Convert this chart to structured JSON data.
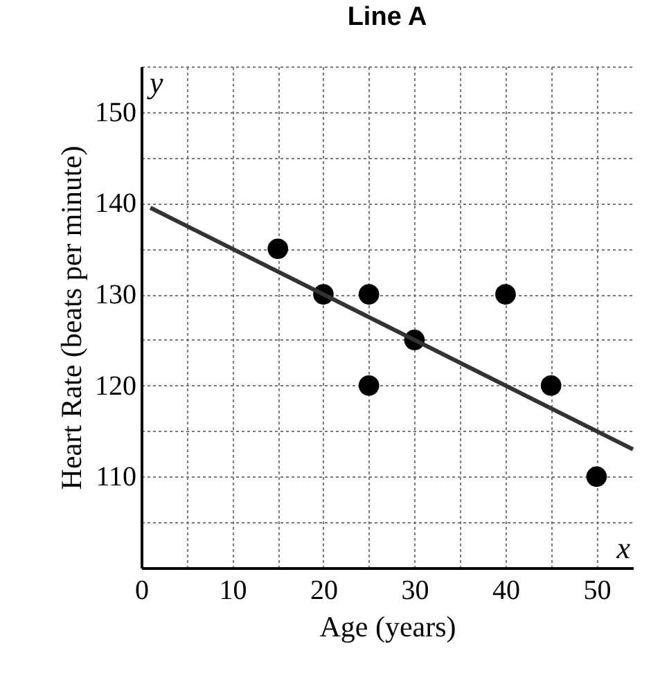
{
  "chart_data": {
    "type": "scatter",
    "title": "Line A",
    "xlabel": "Age (years)",
    "ylabel": "Heart Rate (beats per minute)",
    "annotations": [
      "x",
      "y"
    ],
    "xlim": [
      0,
      54
    ],
    "ylim": [
      100,
      155
    ],
    "xticks": [
      0,
      {
        "value": 5,
        "label": null
      },
      10,
      {
        "value": 15,
        "label": null
      },
      20,
      {
        "value": 25,
        "label": null
      },
      30,
      {
        "value": 35,
        "label": null
      },
      40,
      {
        "value": 45,
        "label": null
      },
      50
    ],
    "yticks": [
      {
        "value": 105,
        "label": null
      },
      110,
      {
        "value": 115,
        "label": null
      },
      120,
      {
        "value": 125,
        "label": null
      },
      130,
      {
        "value": 135,
        "label": null
      },
      140,
      {
        "value": 145,
        "label": null
      },
      150,
      {
        "value": 155,
        "label": null
      }
    ],
    "grid": true,
    "line_style": "solid",
    "series": [
      {
        "type": "scatter",
        "marker": "circle",
        "color": "#000000",
        "x": [
          15,
          20,
          25,
          25,
          30,
          40,
          45,
          50
        ],
        "values": [
          135,
          130,
          130,
          120,
          125,
          130,
          120,
          110
        ]
      },
      {
        "type": "line",
        "color": "#333333",
        "x": [
          1,
          54
        ],
        "values": [
          139.5,
          113
        ]
      }
    ]
  }
}
